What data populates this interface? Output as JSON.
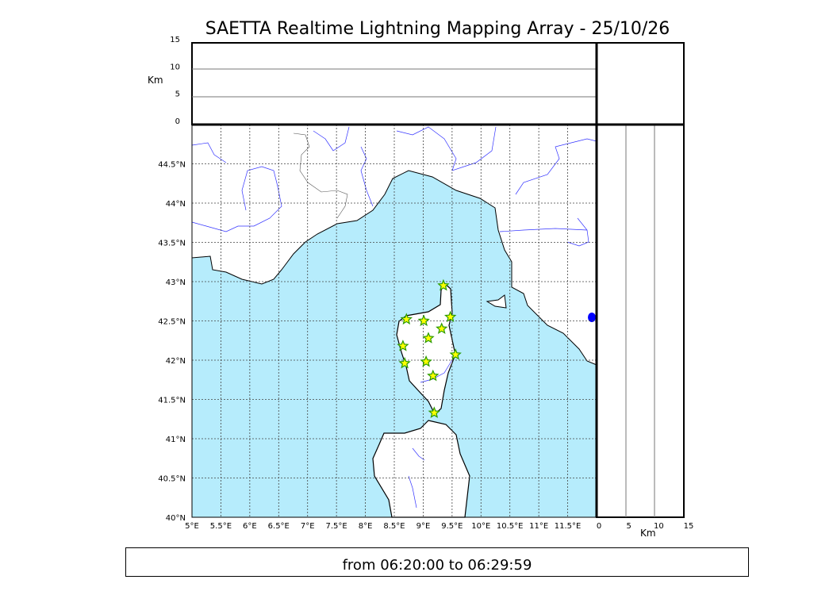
{
  "title": "SAETTA Realtime Lightning Mapping Array - 25/10/26",
  "footer": "from 06:20:00 to 06:29:59",
  "colors": {
    "sea": "#b6ecfc",
    "land": "#ffffff",
    "river": "#3333ff",
    "star_fill": "#ffff00",
    "star_edge": "#2a9a00"
  },
  "map": {
    "lon_range": [
      5,
      12
    ],
    "lat_range": [
      40,
      45
    ],
    "lon_ticks": [
      "5°E",
      "5.5°E",
      "6°E",
      "6.5°E",
      "7°E",
      "7.5°E",
      "8°E",
      "8.5°E",
      "9°E",
      "9.5°E",
      "10°E",
      "10.5°E",
      "11°E",
      "11.5°E"
    ],
    "lat_ticks": [
      "40°N",
      "40.5°N",
      "41°N",
      "41.5°N",
      "42°N",
      "42.5°N",
      "43°N",
      "43.5°N",
      "44°N",
      "44.5°N"
    ],
    "grid": "dotted"
  },
  "altitude_top": {
    "ylabel": "Km",
    "ticks": [
      "0",
      "5",
      "10",
      "15"
    ],
    "range": [
      0,
      15
    ]
  },
  "altitude_right": {
    "xlabel": "Km",
    "ticks": [
      "0",
      "5",
      "10",
      "15"
    ],
    "range": [
      0,
      15
    ]
  },
  "chart_data": {
    "type": "scatter",
    "marker": "star",
    "x_label": "longitude",
    "y_label": "latitude",
    "points": [
      {
        "lon": 9.35,
        "lat": 42.95
      },
      {
        "lon": 8.71,
        "lat": 42.52
      },
      {
        "lon": 9.01,
        "lat": 42.5
      },
      {
        "lon": 9.47,
        "lat": 42.55
      },
      {
        "lon": 9.32,
        "lat": 42.4
      },
      {
        "lon": 9.09,
        "lat": 42.28
      },
      {
        "lon": 8.65,
        "lat": 42.18
      },
      {
        "lon": 9.56,
        "lat": 42.07
      },
      {
        "lon": 8.68,
        "lat": 41.96
      },
      {
        "lon": 9.05,
        "lat": 41.98
      },
      {
        "lon": 9.17,
        "lat": 41.8
      },
      {
        "lon": 9.19,
        "lat": 41.33
      }
    ]
  }
}
